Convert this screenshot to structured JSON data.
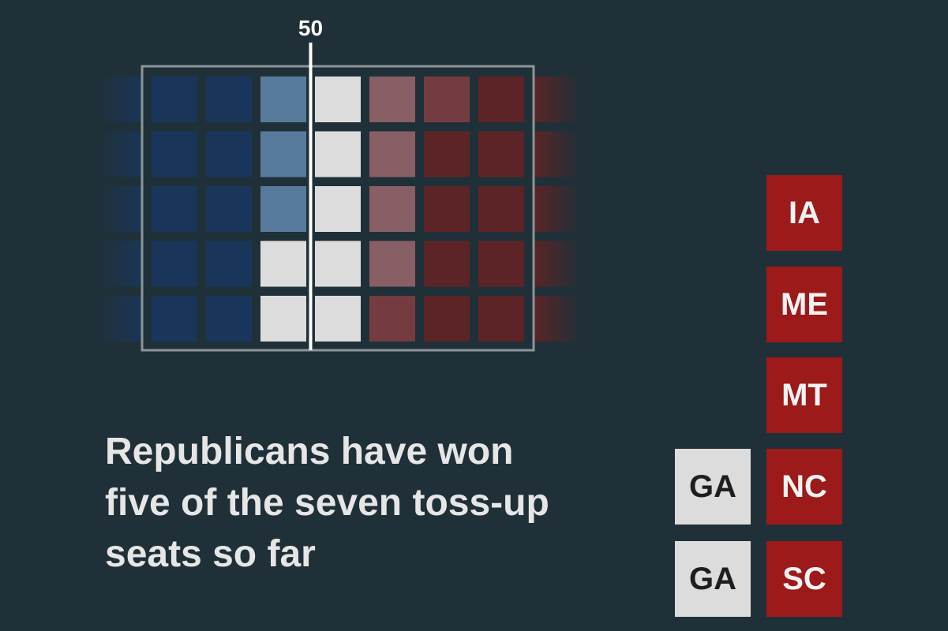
{
  "chart_data": {
    "type": "waffle",
    "majority_marker": "50",
    "colors": {
      "dem": "#19365a",
      "lean_dem": "#577a9c",
      "undecided": "#dcdcdc",
      "lean_rep": "#875f64",
      "likely_rep": "#743c40",
      "rep": "#5c2426",
      "rep_called": "#9c1a1a",
      "frame": "#8c9597",
      "marker": "#ffffff"
    },
    "grid": {
      "columns": [
        [
          "dem",
          "dem",
          "dem",
          "dem",
          "dem"
        ],
        [
          "dem",
          "dem",
          "dem",
          "dem",
          "dem"
        ],
        [
          "dem",
          "dem",
          "dem",
          "dem",
          "dem"
        ],
        [
          "lean_dem",
          "lean_dem",
          "lean_dem",
          "undecided",
          "undecided"
        ],
        [
          "undecided",
          "undecided",
          "undecided",
          "undecided",
          "undecided"
        ],
        [
          "lean_rep",
          "lean_rep",
          "lean_rep",
          "lean_rep",
          "likely_rep"
        ],
        [
          "likely_rep",
          "rep",
          "rep",
          "rep",
          "rep"
        ],
        [
          "rep",
          "rep",
          "rep",
          "rep",
          "rep"
        ],
        [
          "rep",
          "rep",
          "rep",
          "rep",
          "rep"
        ]
      ],
      "faded_columns": [
        0,
        8
      ],
      "framed_columns": [
        1,
        7
      ]
    },
    "toss_up_seats": [
      {
        "state": "IA",
        "status": "rep"
      },
      {
        "state": "ME",
        "status": "rep"
      },
      {
        "state": "MT",
        "status": "rep"
      },
      {
        "state": "NC",
        "status": "rep"
      },
      {
        "state": "SC",
        "status": "rep"
      },
      {
        "state": "GA",
        "status": "undecided"
      },
      {
        "state": "GA",
        "status": "undecided"
      }
    ]
  },
  "headline": {
    "line1": "Republicans have won",
    "line2": "five of the seven toss-up",
    "line3": "seats so far"
  }
}
